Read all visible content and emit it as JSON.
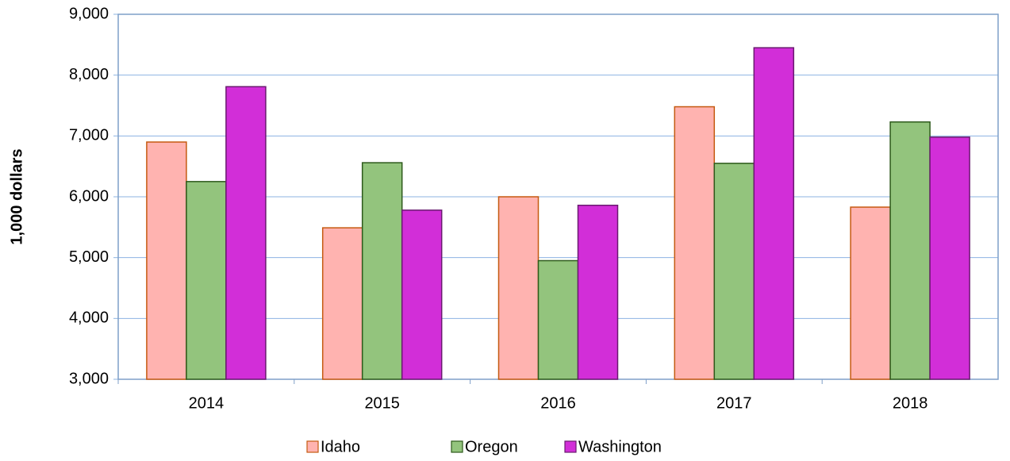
{
  "chart_data": {
    "type": "bar",
    "y_label": "1,000 dollars",
    "categories": [
      "2014",
      "2015",
      "2016",
      "2017",
      "2018"
    ],
    "series": [
      {
        "name": "Idaho",
        "color": "#ffb3b0",
        "stroke": "#c55a11",
        "values": [
          6900,
          5490,
          6000,
          7480,
          5830
        ]
      },
      {
        "name": "Oregon",
        "color": "#93c47d",
        "stroke": "#2e5a1c",
        "values": [
          6250,
          6560,
          4950,
          6550,
          7230
        ]
      },
      {
        "name": "Washington",
        "color": "#d22ed8",
        "stroke": "#6a1a70",
        "values": [
          7810,
          5780,
          5860,
          8450,
          6980
        ]
      }
    ],
    "ylim": [
      3000,
      9000
    ],
    "yticks": [
      {
        "value": 3000,
        "label": "3,000"
      },
      {
        "value": 4000,
        "label": "4,000"
      },
      {
        "value": 5000,
        "label": "5,000"
      },
      {
        "value": 6000,
        "label": "6,000"
      },
      {
        "value": 7000,
        "label": "7,000"
      },
      {
        "value": 8000,
        "label": "8,000"
      },
      {
        "value": 9000,
        "label": "9,000"
      }
    ],
    "grid": true,
    "legend": "bottom"
  }
}
